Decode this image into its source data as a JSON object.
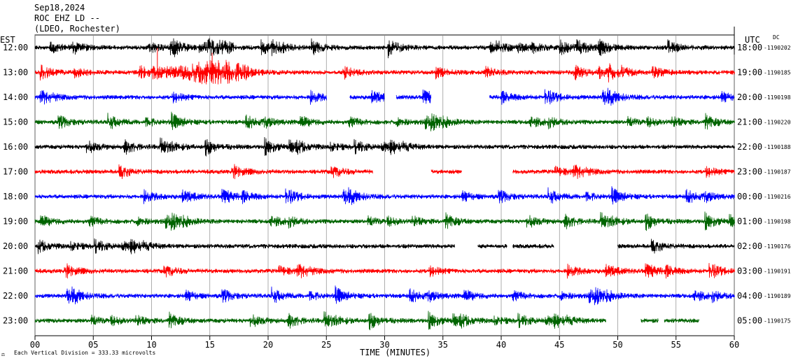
{
  "header": {
    "date": "Sep18,2024",
    "station": "ROC EHZ LD --",
    "network": "(LDEO, Rochester)",
    "left_tz": "EST",
    "right_tz": "UTC",
    "dc_label": "DC"
  },
  "footer": {
    "scale_note": "Each Vertical Division =  333.33 microvolts",
    "xlabel": "TIME (MINUTES)"
  },
  "chart_data": {
    "type": "line",
    "title": "ROC EHZ LD -- (LDEO, Rochester) Sep18,2024",
    "xlabel": "TIME (MINUTES)",
    "xlim": [
      0,
      60
    ],
    "xticks": [
      "00",
      "05",
      "10",
      "15",
      "20",
      "25",
      "30",
      "35",
      "40",
      "45",
      "50",
      "55",
      "60"
    ],
    "grid": true,
    "rows": [
      {
        "est": "12:00",
        "utc": "18:00",
        "dc": "-1190202",
        "color": "#000000",
        "gaps": []
      },
      {
        "est": "13:00",
        "utc": "19:00",
        "dc": "-1190185",
        "color": "#ff0000",
        "gaps": []
      },
      {
        "est": "14:00",
        "utc": "20:00",
        "dc": "-1190198",
        "color": "#0000ff",
        "gaps": [
          [
            25,
            27
          ],
          [
            30,
            31
          ],
          [
            34,
            39
          ]
        ]
      },
      {
        "est": "15:00",
        "utc": "21:00",
        "dc": "-1190220",
        "color": "#006400",
        "gaps": []
      },
      {
        "est": "16:00",
        "utc": "22:00",
        "dc": "-1190188",
        "color": "#000000",
        "gaps": []
      },
      {
        "est": "17:00",
        "utc": "23:00",
        "dc": "-1190187",
        "color": "#ff0000",
        "gaps": [
          [
            29,
            34
          ],
          [
            36.6,
            41
          ]
        ]
      },
      {
        "est": "18:00",
        "utc": "00:00",
        "dc": "-1190216",
        "color": "#0000ff",
        "gaps": []
      },
      {
        "est": "19:00",
        "utc": "01:00",
        "dc": "-1190198",
        "color": "#006400",
        "gaps": []
      },
      {
        "est": "20:00",
        "utc": "02:00",
        "dc": "-1190176",
        "color": "#000000",
        "gaps": [
          [
            36,
            38
          ],
          [
            40.5,
            41
          ],
          [
            44.5,
            50
          ]
        ]
      },
      {
        "est": "21:00",
        "utc": "03:00",
        "dc": "-1190191",
        "color": "#ff0000",
        "gaps": []
      },
      {
        "est": "22:00",
        "utc": "04:00",
        "dc": "-1190189",
        "color": "#0000ff",
        "gaps": []
      },
      {
        "est": "23:00",
        "utc": "05:00",
        "dc": "-1190175",
        "color": "#006400",
        "gaps": [
          [
            49,
            52
          ],
          [
            53.5,
            54
          ],
          [
            57,
            60
          ]
        ]
      }
    ]
  }
}
